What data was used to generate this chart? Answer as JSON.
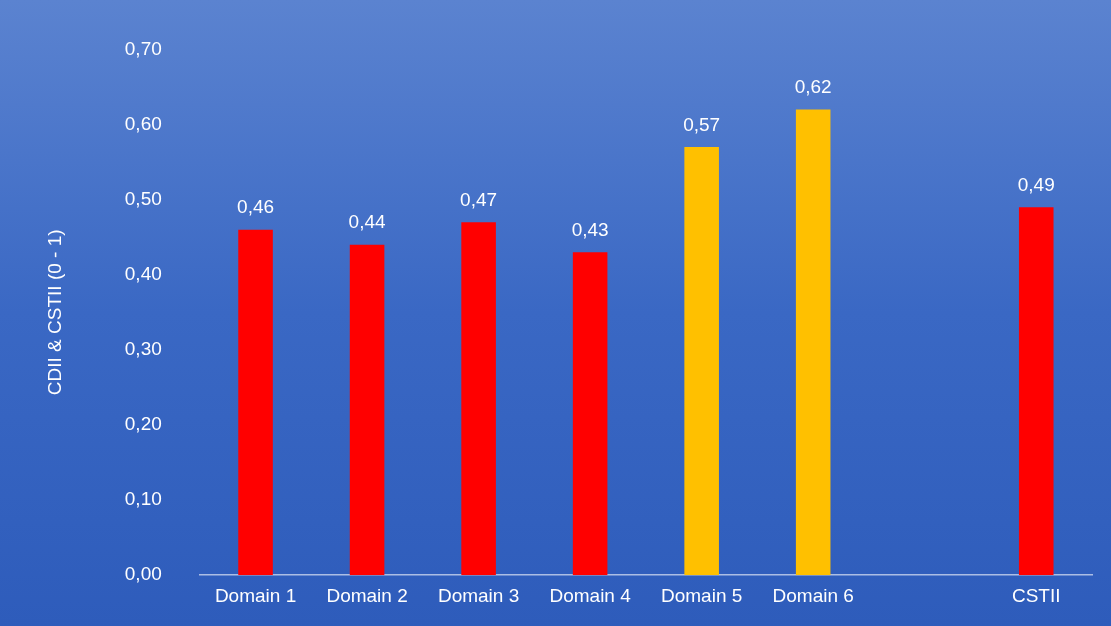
{
  "chart_data": {
    "type": "bar",
    "ylabel": "CDII & CSTII (0 - 1)",
    "categories": [
      "Domain 1",
      "Domain 2",
      "Domain 3",
      "Domain 4",
      "Domain 5",
      "Domain 6",
      null,
      "CSTII"
    ],
    "values": [
      0.46,
      0.44,
      0.47,
      0.43,
      0.57,
      0.62,
      null,
      0.49
    ],
    "value_labels": [
      "0,46",
      "0,44",
      "0,47",
      "0,43",
      "0,57",
      "0,62",
      null,
      "0,49"
    ],
    "colors": [
      "#ff0000",
      "#ff0000",
      "#ff0000",
      "#ff0000",
      "#ffc000",
      "#ffc000",
      null,
      "#ff0000"
    ],
    "ylim": [
      0,
      0.7
    ],
    "yticks": [
      {
        "value": 0,
        "label": "0,00"
      },
      {
        "value": 0.1,
        "label": "0,10"
      },
      {
        "value": 0.2,
        "label": "0,20"
      },
      {
        "value": 0.3,
        "label": "0,30"
      },
      {
        "value": 0.4,
        "label": "0,40"
      },
      {
        "value": 0.5,
        "label": "0,50"
      },
      {
        "value": 0.6,
        "label": "0,60"
      },
      {
        "value": 0.7,
        "label": "0,70"
      }
    ],
    "grid": false,
    "legend": false
  }
}
